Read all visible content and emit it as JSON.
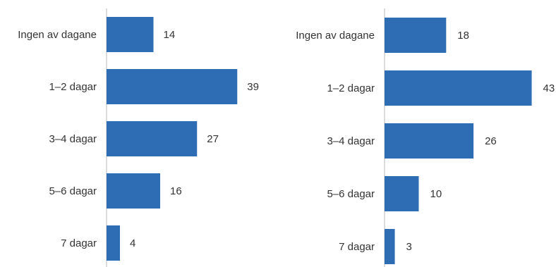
{
  "colors": {
    "bar": "#2e6db4",
    "axis": "#cfcfcf",
    "text": "#333333"
  },
  "chart_data": [
    {
      "type": "bar",
      "orientation": "horizontal",
      "title": "",
      "xlabel": "",
      "ylabel": "",
      "grid": false,
      "categories": [
        "Ingen av dagane",
        "1–2 dagar",
        "3–4 dagar",
        "5–6 dagar",
        "7 dagar"
      ],
      "values": [
        14,
        39,
        27,
        16,
        4
      ],
      "xlim": [
        0,
        60
      ]
    },
    {
      "type": "bar",
      "orientation": "horizontal",
      "title": "",
      "xlabel": "",
      "ylabel": "",
      "grid": false,
      "categories": [
        "Ingen av dagane",
        "1–2 dagar",
        "3–4 dagar",
        "5–6 dagar",
        "7 dagar"
      ],
      "values": [
        18,
        43,
        26,
        10,
        3
      ],
      "xlim": [
        0,
        60
      ]
    }
  ]
}
